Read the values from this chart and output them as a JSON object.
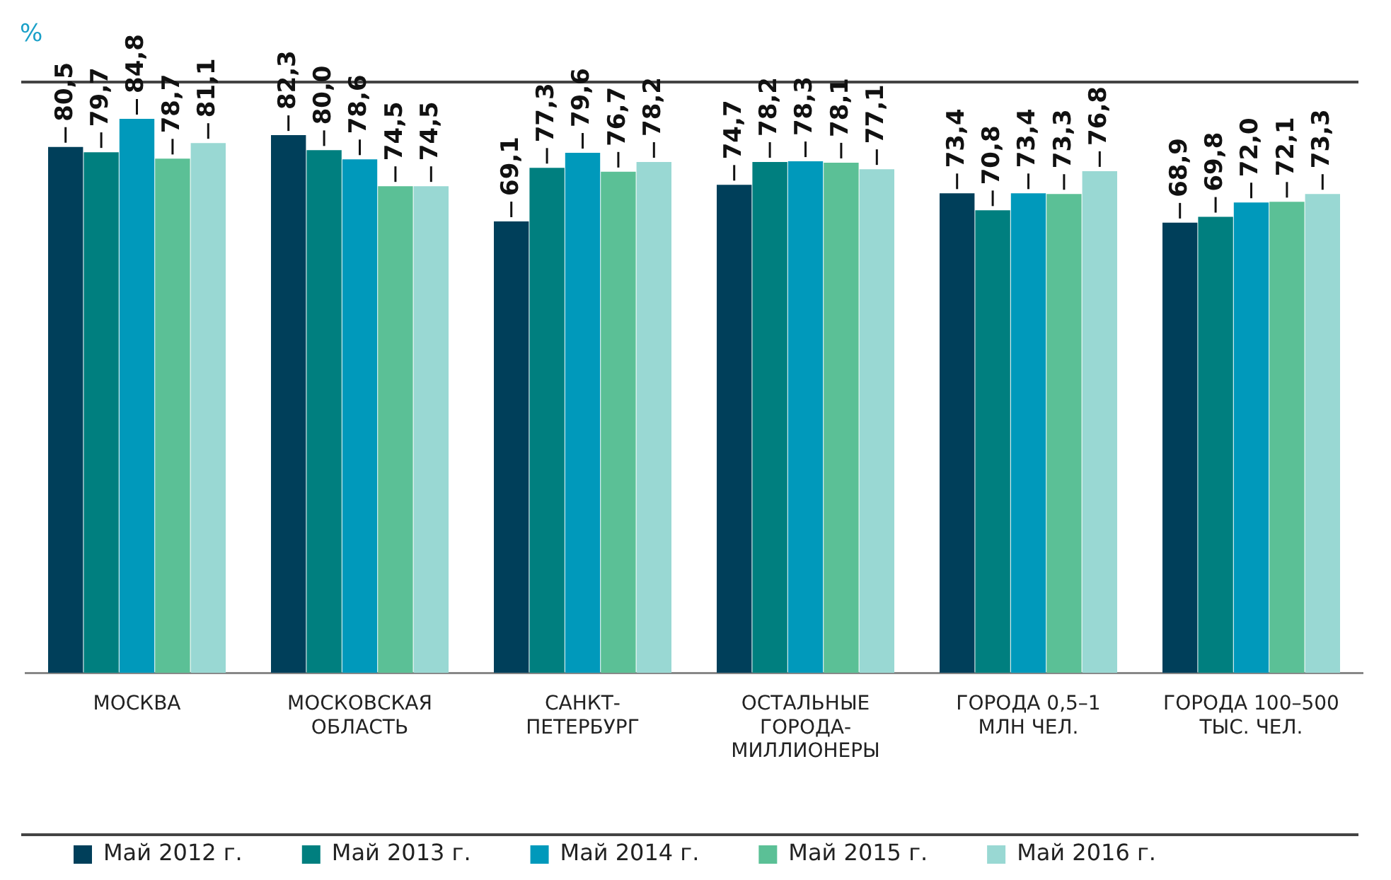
{
  "chart_data": {
    "type": "bar",
    "ylabel": "%",
    "categories": [
      "МОСКВА",
      "МОСКОВСКАЯ ОБЛАСТЬ",
      "САНКТ-ПЕТЕРБУРГ",
      "ОСТАЛЬНЫЕ ГОРОДА-МИЛЛИОНЕРЫ",
      "ГОРОДА 0,5–1 МЛН ЧЕЛ.",
      "ГОРОДА 100–500 ТЫС. ЧЕЛ."
    ],
    "series": [
      {
        "name": "Май 2012 г.",
        "color": "#003f5a",
        "values": [
          80.5,
          82.3,
          69.1,
          74.7,
          73.4,
          68.9
        ],
        "value_labels": [
          "80,5",
          "82,3",
          "69,1",
          "74,7",
          "73,4",
          "68,9"
        ]
      },
      {
        "name": "Май 2013 г.",
        "color": "#007f7f",
        "values": [
          79.7,
          80.0,
          77.3,
          78.2,
          70.8,
          69.8
        ],
        "value_labels": [
          "79,7",
          "80,0",
          "77,3",
          "78,2",
          "70,8",
          "69,8"
        ]
      },
      {
        "name": "Май 2014 г.",
        "color": "#0099bb",
        "values": [
          84.8,
          78.6,
          79.6,
          78.3,
          73.4,
          72.0
        ],
        "value_labels": [
          "84,8",
          "78,6",
          "79,6",
          "78,3",
          "73,4",
          "72,0"
        ]
      },
      {
        "name": "Май 2015 г.",
        "color": "#5bc096",
        "values": [
          78.7,
          74.5,
          76.7,
          78.1,
          73.3,
          72.1
        ],
        "value_labels": [
          "78,7",
          "74,5",
          "76,7",
          "78,1",
          "73,3",
          "72,1"
        ]
      },
      {
        "name": "Май 2016 г.",
        "color": "#99d8d3",
        "values": [
          81.1,
          74.5,
          78.2,
          77.1,
          76.8,
          73.3
        ],
        "value_labels": [
          "81,1",
          "74,5",
          "78,2",
          "77,1",
          "76,8",
          "73,3"
        ]
      }
    ],
    "legend": "bottom",
    "tick_labels": "x"
  }
}
